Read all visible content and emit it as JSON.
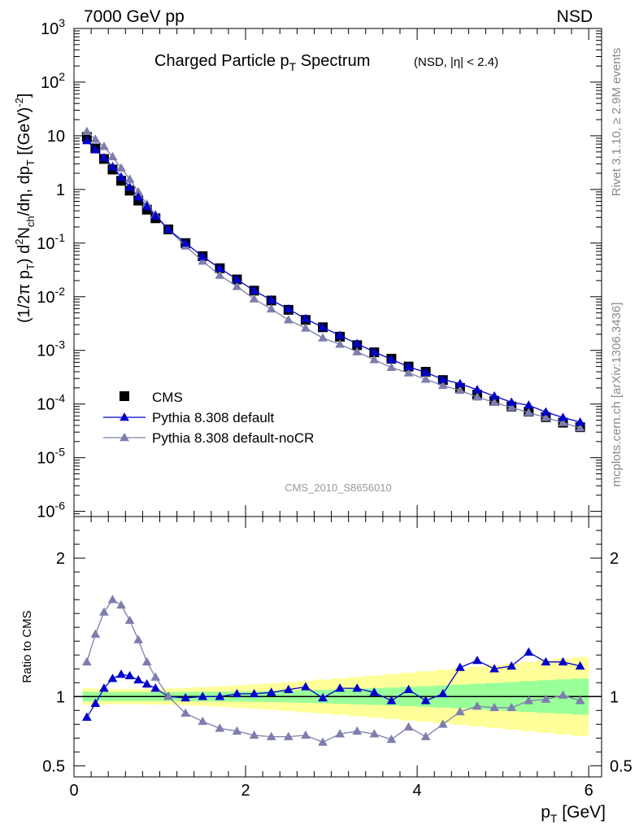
{
  "header": {
    "left": "7000 GeV pp",
    "right": "NSD"
  },
  "side_labels": {
    "rivet": "Rivet 3.1.10, ≥ 2.9M events",
    "mcplots": "mcplots.cern.ch [arXiv:1306.3436]"
  },
  "chart_data": [
    {
      "type": "scatter",
      "title": "Charged Particle p_T Spectrum",
      "subtitle": "(NSD, |η| < 2.4)",
      "watermark": "CMS_2010_S8656010",
      "ylabel": "(1/2π p_T) d²N_ch/dη, dp_T [(GeV)^-2]",
      "yscale": "log",
      "xlim": [
        0,
        6.15
      ],
      "ylim": [
        8e-07,
        1000
      ],
      "yticks": [
        {
          "v": 1e-06,
          "m": "10",
          "e": "-6"
        },
        {
          "v": 1e-05,
          "m": "10",
          "e": "-5"
        },
        {
          "v": 0.0001,
          "m": "10",
          "e": "-4"
        },
        {
          "v": 0.001,
          "m": "10",
          "e": "-3"
        },
        {
          "v": 0.01,
          "m": "10",
          "e": "-2"
        },
        {
          "v": 0.1,
          "m": "10",
          "e": "-1"
        },
        {
          "v": 1,
          "m": "1",
          "e": ""
        },
        {
          "v": 10,
          "m": "10",
          "e": ""
        },
        {
          "v": 100,
          "m": "10",
          "e": "2"
        },
        {
          "v": 1000,
          "m": "10",
          "e": "3"
        }
      ],
      "legend_position": "bottom-left",
      "x": [
        0.15,
        0.25,
        0.35,
        0.45,
        0.55,
        0.65,
        0.75,
        0.85,
        0.95,
        1.1,
        1.3,
        1.5,
        1.7,
        1.9,
        2.1,
        2.3,
        2.5,
        2.7,
        2.9,
        3.1,
        3.3,
        3.5,
        3.7,
        3.9,
        4.1,
        4.3,
        4.5,
        4.7,
        4.9,
        5.1,
        5.3,
        5.5,
        5.7,
        5.9
      ],
      "series": [
        {
          "name": "CMS",
          "marker": "square",
          "color": "#000000",
          "values": [
            9.5,
            5.8,
            3.7,
            2.35,
            1.45,
            0.95,
            0.62,
            0.42,
            0.29,
            0.18,
            0.1,
            0.057,
            0.034,
            0.021,
            0.013,
            0.0085,
            0.0057,
            0.0037,
            0.0027,
            0.0018,
            0.00125,
            0.00092,
            0.0007,
            0.0005,
            0.0004,
            0.00028,
            0.0002,
            0.00015,
            0.000115,
            9e-05,
            7.2e-05,
            5.7e-05,
            4.5e-05,
            3.7e-05
          ]
        },
        {
          "name": "Pythia 8.308 default",
          "marker": "triangle",
          "color": "#0000cc",
          "values": [
            8.1,
            5.5,
            3.9,
            2.65,
            1.7,
            1.1,
            0.72,
            0.48,
            0.32,
            0.18,
            0.1,
            0.056,
            0.034,
            0.021,
            0.013,
            0.0087,
            0.0059,
            0.0039,
            0.0027,
            0.0019,
            0.00133,
            0.00094,
            0.00068,
            0.000495,
            0.00039,
            0.000287,
            0.00024,
            0.000185,
            0.000141,
            0.000108,
            9.5e-05,
            7.1e-05,
            5.6e-05,
            4.6e-05
          ]
        },
        {
          "name": "Pythia 8.308 default-noCR",
          "marker": "triangle",
          "color": "#7e7eae",
          "values": [
            12,
            8.6,
            6.3,
            4.05,
            2.5,
            1.55,
            0.9,
            0.53,
            0.34,
            0.18,
            0.088,
            0.046,
            0.025,
            0.0155,
            0.0091,
            0.0059,
            0.0037,
            0.0026,
            0.0017,
            0.0013,
            0.00094,
            0.00067,
            0.00048,
            0.00038,
            0.00029,
            0.000222,
            0.00018,
            0.000135,
            0.000107,
            8.7e-05,
            6.9e-05,
            5.6e-05,
            4.5e-05,
            3.6e-05
          ]
        }
      ]
    },
    {
      "type": "line",
      "ylabel": "Ratio to CMS",
      "xlabel": "p_T [GeV]",
      "xlim": [
        0,
        6.15
      ],
      "ylim": [
        0.42,
        2.3
      ],
      "xticks": [
        0,
        2,
        4,
        6
      ],
      "yticks": [
        0.5,
        1,
        2
      ],
      "reference_line": 1,
      "band_colors": {
        "outer": "#ffff99",
        "inner": "#99ff99"
      },
      "band_edges": [
        0.1,
        0.2,
        0.3,
        0.4,
        0.5,
        0.6,
        0.7,
        0.8,
        0.9,
        1.0,
        1.2,
        1.4,
        1.6,
        1.8,
        2.0,
        2.2,
        2.4,
        2.6,
        2.8,
        3.0,
        3.2,
        3.4,
        3.6,
        3.8,
        4.0,
        4.2,
        4.4,
        4.6,
        4.8,
        5.0,
        5.2,
        5.4,
        5.6,
        5.8,
        6.0
      ],
      "band_inner": [
        0.035,
        0.033,
        0.032,
        0.032,
        0.032,
        0.032,
        0.032,
        0.032,
        0.032,
        0.032,
        0.033,
        0.034,
        0.035,
        0.036,
        0.038,
        0.04,
        0.042,
        0.045,
        0.048,
        0.052,
        0.056,
        0.06,
        0.065,
        0.07,
        0.075,
        0.08,
        0.086,
        0.092,
        0.098,
        0.105,
        0.112,
        0.118,
        0.124,
        0.13
      ],
      "band_outer": [
        0.06,
        0.058,
        0.056,
        0.055,
        0.055,
        0.055,
        0.055,
        0.056,
        0.057,
        0.058,
        0.062,
        0.068,
        0.074,
        0.08,
        0.088,
        0.096,
        0.105,
        0.114,
        0.123,
        0.132,
        0.142,
        0.152,
        0.162,
        0.172,
        0.182,
        0.193,
        0.204,
        0.215,
        0.226,
        0.238,
        0.25,
        0.262,
        0.274,
        0.285
      ],
      "x": [
        0.15,
        0.25,
        0.35,
        0.45,
        0.55,
        0.65,
        0.75,
        0.85,
        0.95,
        1.1,
        1.3,
        1.5,
        1.7,
        1.9,
        2.1,
        2.3,
        2.5,
        2.7,
        2.9,
        3.1,
        3.3,
        3.5,
        3.7,
        3.9,
        4.1,
        4.3,
        4.5,
        4.7,
        4.9,
        5.1,
        5.3,
        5.5,
        5.7,
        5.9
      ],
      "series": [
        {
          "name": "Pythia 8.308 default",
          "color": "#0000cc",
          "values": [
            0.85,
            0.95,
            1.06,
            1.13,
            1.16,
            1.15,
            1.12,
            1.09,
            1.06,
            1.0,
            0.99,
            1.0,
            1.0,
            1.02,
            1.02,
            1.03,
            1.05,
            1.07,
            0.99,
            1.06,
            1.06,
            1.03,
            0.97,
            1.05,
            0.97,
            1.02,
            1.21,
            1.26,
            1.2,
            1.22,
            1.32,
            1.25,
            1.25,
            1.22
          ]
        },
        {
          "name": "Pythia 8.308 default-noCR",
          "color": "#7e7eae",
          "values": [
            1.25,
            1.45,
            1.61,
            1.7,
            1.66,
            1.55,
            1.41,
            1.25,
            1.14,
            1.0,
            0.88,
            0.82,
            0.77,
            0.75,
            0.72,
            0.71,
            0.71,
            0.72,
            0.67,
            0.73,
            0.75,
            0.73,
            0.69,
            0.78,
            0.71,
            0.8,
            0.89,
            0.93,
            0.92,
            0.92,
            0.97,
            0.98,
            1.01,
            0.97
          ]
        }
      ]
    }
  ]
}
